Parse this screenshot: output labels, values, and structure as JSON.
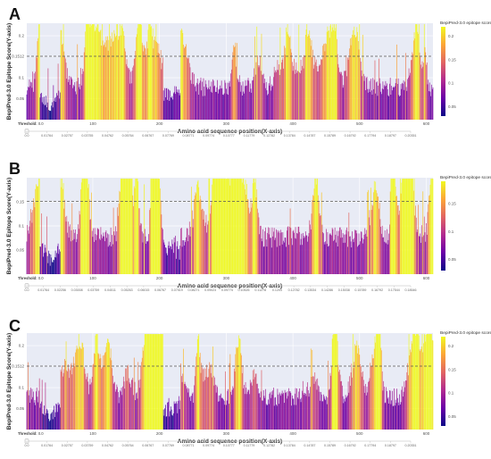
{
  "colors": {
    "plot_bg": "#e8ebf5",
    "threshold_line": "#555555",
    "scale": [
      "#0d0887",
      "#6a00a8",
      "#b12a90",
      "#e16462",
      "#fca636",
      "#f0f921"
    ]
  },
  "chart_data": [
    {
      "type": "bar",
      "panel": "A",
      "ylabel": "BepiPred-3.0 Epitope Score(Y-axis)",
      "xlabel": "Amino acid sequence position(X-axis)",
      "xlim": [
        1,
        610
      ],
      "ylim": [
        0,
        0.23
      ],
      "xticks": [
        100,
        200,
        300,
        400,
        500,
        600
      ],
      "yticks": [
        0.05,
        0.1,
        0.1512,
        0.2
      ],
      "ytick_labels": [
        "0.05",
        "0.1",
        "0.1512",
        "0.2"
      ],
      "threshold": 0.1512,
      "colorbar": {
        "title": "BepiPred-3.0 epitope score",
        "ticks": [
          "0.05",
          "0.1",
          "0.15",
          "0.2"
        ],
        "tick_values": [
          0.05,
          0.1,
          0.15,
          0.2
        ],
        "range": [
          0.03,
          0.22
        ]
      },
      "threshold_label": "Threshold:",
      "threshold_value": "0.0",
      "slider_labels": [
        "0.0",
        "0.01764",
        "0.02757",
        "0.03755",
        "0.04762",
        "0.05764",
        "0.06767",
        "0.07769",
        "0.08771",
        "0.09774",
        "0.10777",
        "0.11779",
        "0.12782",
        "0.13784",
        "0.14787",
        "0.15789",
        "0.16792",
        "0.17794",
        "0.18797",
        "0.20351"
      ],
      "seed": 11
    },
    {
      "type": "bar",
      "panel": "B",
      "ylabel": "BepiPred-3.0 Epitope Score(Y-axis)",
      "xlabel": "Amino acid sequence position(X-axis)",
      "xlim": [
        1,
        610
      ],
      "ylim": [
        0,
        0.2
      ],
      "xticks": [
        100,
        200,
        300,
        400,
        500,
        600
      ],
      "yticks": [
        0.05,
        0.1,
        0.15
      ],
      "ytick_labels": [
        "0.05",
        "0.1",
        "0.15"
      ],
      "threshold": 0.1512,
      "colorbar": {
        "title": "BepiPred-3.0 epitope score",
        "ticks": [
          "0.05",
          "0.1",
          "0.15"
        ],
        "tick_values": [
          0.05,
          0.1,
          0.15
        ],
        "range": [
          0.03,
          0.19
        ]
      },
      "threshold_label": "Threshold:",
      "threshold_value": "0.0",
      "slider_labels": [
        "0.0",
        "0.01764",
        "0.02256",
        "0.03008",
        "0.03759",
        "0.04511",
        "0.05263",
        "0.06015",
        "0.06767",
        "0.07519",
        "0.08271",
        "0.09023",
        "0.09774",
        "0.10526",
        "0.11278",
        "0.1203",
        "0.12782",
        "0.13534",
        "0.14286",
        "0.15038",
        "0.15789",
        "0.16792",
        "0.17544",
        "0.18546"
      ],
      "seed": 23
    },
    {
      "type": "bar",
      "panel": "C",
      "ylabel": "BepiPred-3.0 Epitope Score(Y-axis)",
      "xlabel": "Amino acid sequence position(X-axis)",
      "xlim": [
        1,
        610
      ],
      "ylim": [
        0,
        0.23
      ],
      "xticks": [
        100,
        200,
        300,
        400,
        500,
        600
      ],
      "yticks": [
        0.05,
        0.1,
        0.1512,
        0.2
      ],
      "ytick_labels": [
        "0.05",
        "0.1",
        "0.1512",
        "0.2"
      ],
      "threshold": 0.1512,
      "colorbar": {
        "title": "BepiPred-3.0 epitope score",
        "ticks": [
          "0.05",
          "0.1",
          "0.15",
          "0.2"
        ],
        "tick_values": [
          0.05,
          0.1,
          0.15,
          0.2
        ],
        "range": [
          0.03,
          0.22
        ]
      },
      "threshold_label": "Threshold:",
      "threshold_value": "0.0",
      "slider_labels": [
        "0.0",
        "0.01764",
        "0.02757",
        "0.03759",
        "0.04762",
        "0.05764",
        "0.06767",
        "0.07769",
        "0.08771",
        "0.09774",
        "0.10777",
        "0.11779",
        "0.12782",
        "0.13784",
        "0.14787",
        "0.15789",
        "0.16792",
        "0.17794",
        "0.18797",
        "0.20351"
      ],
      "seed": 37
    }
  ]
}
